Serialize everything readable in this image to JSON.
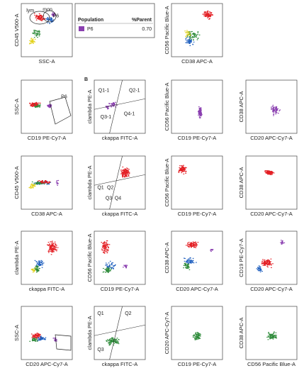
{
  "legend": {
    "headers": [
      "Population",
      "%Parent"
    ],
    "rows": [
      [
        "P6",
        "0.70"
      ]
    ]
  },
  "panels": [
    {
      "y_label": "CD45 V500-A",
      "x_label": "SSC-A",
      "gates": [
        "lym",
        "mon",
        "P6"
      ]
    },
    {
      "y_label": "CD56 Pacific Blue-A",
      "x_label": "CD38 APC-A",
      "gates": []
    },
    {
      "y_label": "SSC-A",
      "x_label": "CD19 PE-Cy7-A",
      "gates": [
        "P6"
      ]
    },
    {
      "letter": "B",
      "y_label": "clambda PE-A",
      "x_label": "ckappa FITC-A",
      "gates": [
        "Q1-1",
        "Q2-1",
        "Q3-1",
        "Q4-1"
      ]
    },
    {
      "y_label": "CD56 Pacific Blue-A",
      "x_label": "CD19 PE-Cy7-A",
      "gates": []
    },
    {
      "y_label": "CD38 APC-A",
      "x_label": "CD20 APC-Cy7-A",
      "gates": []
    },
    {
      "y_label": "CD45 V500-A",
      "x_label": "CD38 APC-A",
      "gates": []
    },
    {
      "y_label": "clambda PE-A",
      "x_label": "ckappa FITC-A",
      "gates": [
        "Q1",
        "Q2",
        "Q3",
        "Q4"
      ]
    },
    {
      "y_label": "CD56 Pacific Blue-A",
      "x_label": "CD19 PE-Cy7-A",
      "gates": []
    },
    {
      "y_label": "CD38 APC-A",
      "x_label": "CD20 APC-Cy7-A",
      "gates": []
    },
    {
      "y_label": "clambda PE-A",
      "x_label": "ckappa FITC-A",
      "gates": []
    },
    {
      "y_label": "CD56 Pacific Blue-A",
      "x_label": "CD19 PE-Cy7-A",
      "gates": []
    },
    {
      "y_label": "CD38 APC-A",
      "x_label": "CD20 APC-Cy7-A",
      "gates": []
    },
    {
      "y_label": "CD19 PE-Cy7-A",
      "x_label": "CD20 APC-Cy7-A",
      "gates": []
    },
    {
      "y_label": "SSC-A",
      "x_label": "CD20 APC-Cy7-A",
      "gates": []
    },
    {
      "y_label": "clambda PE-A",
      "x_label": "ckappa FITC-A",
      "gates": [
        "Q1",
        "Q2",
        "Q3"
      ]
    },
    {
      "y_label": "CD20 APC-Cy7-A",
      "x_label": "CD19 PE-Cy7-A",
      "gates": []
    },
    {
      "y_label": "CD38 APC-A",
      "x_label": "CD56 Pacific Blue-A",
      "gates": []
    }
  ]
}
